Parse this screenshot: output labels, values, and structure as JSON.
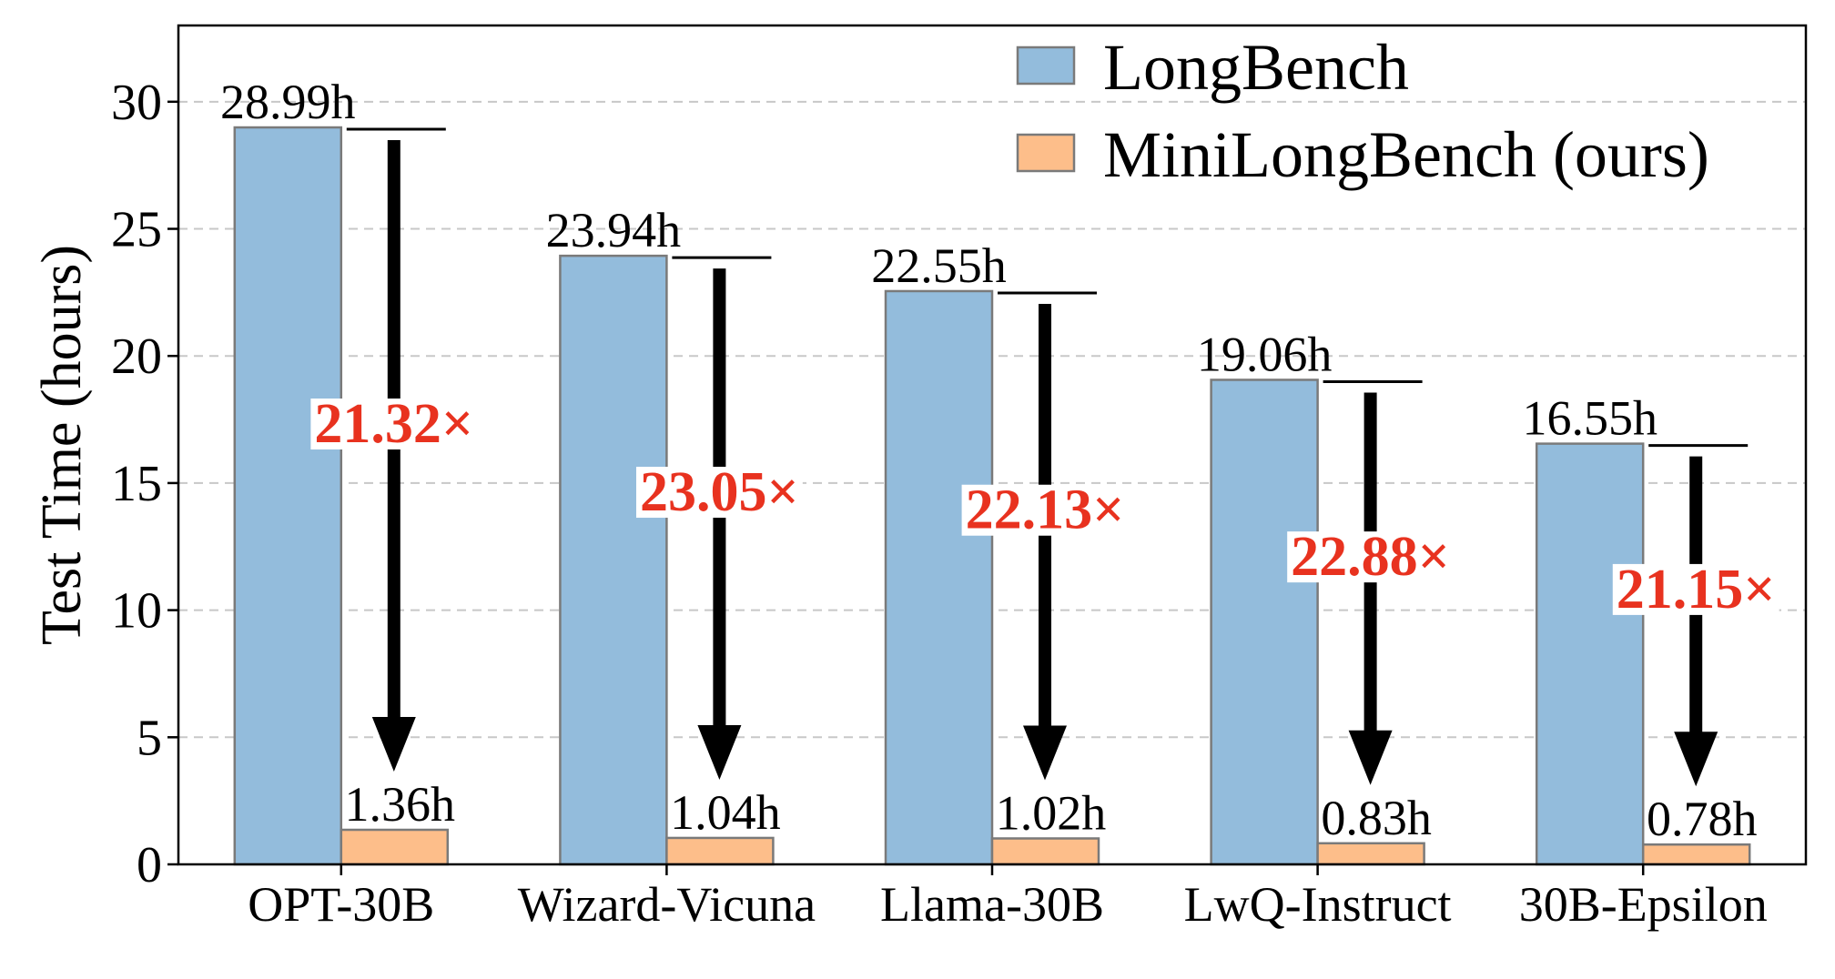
{
  "chart_data": {
    "type": "bar",
    "title": "",
    "xlabel": "",
    "ylabel": "Test Time (hours)",
    "ylim": [
      0,
      33
    ],
    "yticks": [
      0,
      5,
      10,
      15,
      20,
      25,
      30
    ],
    "grid": "horizontal dashed",
    "legend_position": "top-right",
    "categories": [
      "OPT-30B",
      "Wizard-Vicuna",
      "Llama-30B",
      "LwQ-Instruct",
      "30B-Epsilon"
    ],
    "series": [
      {
        "name": "LongBench",
        "color": "#93bcdc",
        "values": [
          28.99,
          23.94,
          22.55,
          19.06,
          16.55
        ],
        "labels": [
          "28.99h",
          "23.94h",
          "22.55h",
          "19.06h",
          "16.55h"
        ]
      },
      {
        "name": "MiniLongBench (ours)",
        "color": "#fdbe8a",
        "values": [
          1.36,
          1.04,
          1.02,
          0.83,
          0.78
        ],
        "labels": [
          "1.36h",
          "1.04h",
          "1.02h",
          "0.83h",
          "0.78h"
        ]
      }
    ],
    "speedups": [
      "21.32×",
      "23.05×",
      "22.13×",
      "22.88×",
      "21.15×"
    ],
    "speedup_color": "#e8321f"
  }
}
